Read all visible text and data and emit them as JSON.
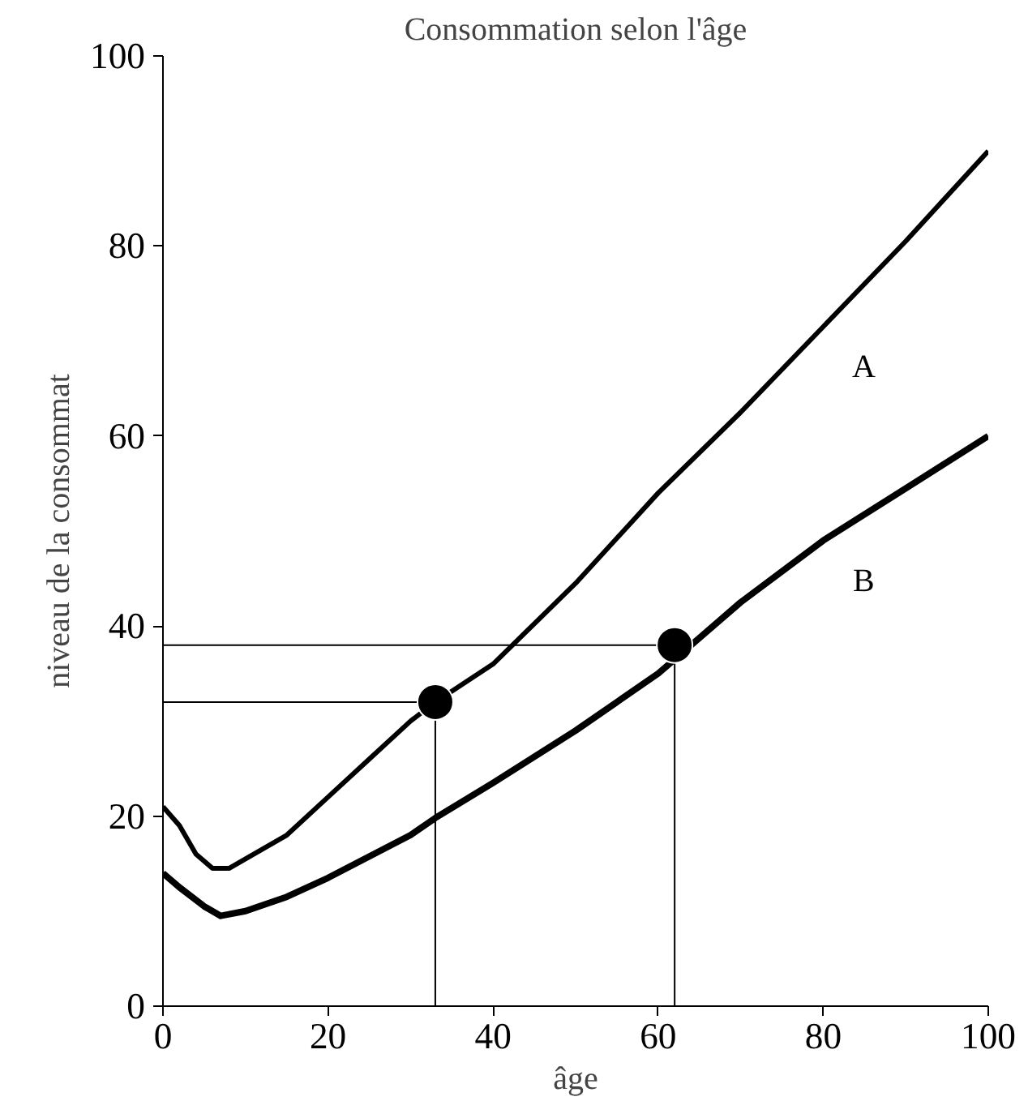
{
  "chart_data": {
    "type": "line",
    "title": "Consommation selon l'âge",
    "xlabel": "âge",
    "ylabel": "niveau de la consommat",
    "xlim": [
      0,
      100
    ],
    "ylim": [
      0,
      100
    ],
    "xticks": [
      0,
      20,
      40,
      60,
      80,
      100
    ],
    "yticks": [
      0,
      20,
      40,
      60,
      80,
      100
    ],
    "grid": false,
    "legend": false,
    "marker": "none",
    "line_style": "solid",
    "series": [
      {
        "name": "A",
        "color": "#000000",
        "x": [
          0,
          2,
          4,
          6,
          8,
          10,
          15,
          20,
          25,
          30,
          33,
          40,
          50,
          60,
          70,
          80,
          90,
          100
        ],
        "values": [
          21,
          19,
          16,
          14.5,
          14.5,
          15.5,
          18,
          22,
          26,
          30,
          32,
          36,
          44.5,
          54,
          62.5,
          71.5,
          80.5,
          90
        ]
      },
      {
        "name": "B",
        "color": "#000000",
        "x": [
          0,
          2,
          5,
          7,
          10,
          15,
          20,
          30,
          33,
          40,
          50,
          60,
          62,
          70,
          80,
          90,
          100
        ],
        "values": [
          14,
          12.5,
          10.5,
          9.5,
          10,
          11.5,
          13.5,
          18,
          19.8,
          23.5,
          29,
          35,
          36.5,
          42.5,
          49,
          54.5,
          60
        ]
      },
      {
        "type": "line",
        "color": "#000000",
        "x": [
          0,
          33,
          33
        ],
        "values": [
          32,
          32,
          0
        ]
      },
      {
        "type": "line",
        "color": "#000000",
        "x": [
          0,
          62,
          62
        ],
        "values": [
          38,
          38,
          0
        ]
      },
      {
        "type": "scatter",
        "marker": "circle",
        "color": "#000000",
        "x": [
          33,
          62
        ],
        "values": [
          32,
          38
        ]
      }
    ]
  }
}
